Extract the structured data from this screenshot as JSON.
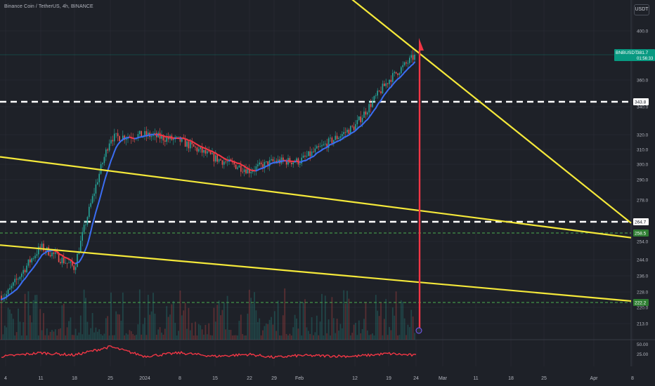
{
  "header": {
    "title": "Binance Coin / TetherUS, 4h, BINANCE",
    "currency": "USDT"
  },
  "colors": {
    "background": "#1e2128",
    "grid": "#2a2e38",
    "up": "#26a69a",
    "down": "#ef5350",
    "ma_up": "#3b6df2",
    "ma_down": "#f23645",
    "trendline": "#f5e93a",
    "level_white": "#ffffff",
    "level_green": "#4caf50",
    "arrow": "#f23645",
    "oscillator": "#f23645",
    "price_badge": "#089981"
  },
  "chart_data": [
    {
      "type": "candlestick",
      "symbol": "BNBUSDT",
      "timeframe": "4h",
      "x_ticks": [
        "4",
        "11",
        "18",
        "25",
        "2024",
        "8",
        "15",
        "22",
        "29",
        "Feb",
        "12",
        "19",
        "24",
        "Mar",
        "11",
        "18",
        "25",
        "Apr",
        "8"
      ],
      "y_ticks": [
        400.0,
        360.0,
        340.0,
        320.0,
        310.0,
        300.0,
        290.0,
        278.0,
        264.7,
        254.0,
        244.0,
        236.0,
        228.0,
        220.0,
        213.0
      ],
      "ylim": [
        208,
        420
      ],
      "price_path": {
        "x": [
          "4",
          "11",
          "18",
          "25",
          "2024",
          "8",
          "15",
          "22",
          "29",
          "Feb",
          "12",
          "19",
          "24"
        ],
        "close": [
          226,
          251,
          240,
          318,
          320,
          316,
          304,
          296,
          302,
          302,
          326,
          360,
          381.7
        ]
      },
      "last_price": {
        "symbol": "BNBUSDT",
        "value": "381.7",
        "countdown": "01:56:33"
      },
      "horizontal_levels": [
        {
          "value": "343.8",
          "style": "white-dashed"
        },
        {
          "value": "264.7",
          "style": "white-dashed"
        },
        {
          "value": "258.5",
          "style": "green-dashed"
        },
        {
          "value": "222.2",
          "style": "green-dashed"
        }
      ],
      "trendlines": [
        {
          "from": [
            "4",
            305
          ],
          "to": [
            "8",
            256
          ]
        },
        {
          "from": [
            "4",
            252
          ],
          "to": [
            "8",
            223
          ]
        },
        {
          "from": [
            "Feb",
            420
          ],
          "to": [
            "8",
            264
          ]
        }
      ],
      "projection_arrow": {
        "x": "24",
        "from_price": 390,
        "to_price": 208
      },
      "volume": "shown"
    },
    {
      "type": "line",
      "name": "oscillator",
      "y_ticks": [
        "50.00",
        "25.00"
      ],
      "ylim": [
        0,
        55
      ],
      "x": [
        "4",
        "11",
        "18",
        "25",
        "2024",
        "8",
        "15",
        "22",
        "29",
        "Feb",
        "12",
        "19",
        "24"
      ],
      "values": [
        19,
        28,
        22,
        44,
        19,
        28,
        19,
        24,
        16,
        21,
        19,
        26,
        21
      ]
    }
  ]
}
